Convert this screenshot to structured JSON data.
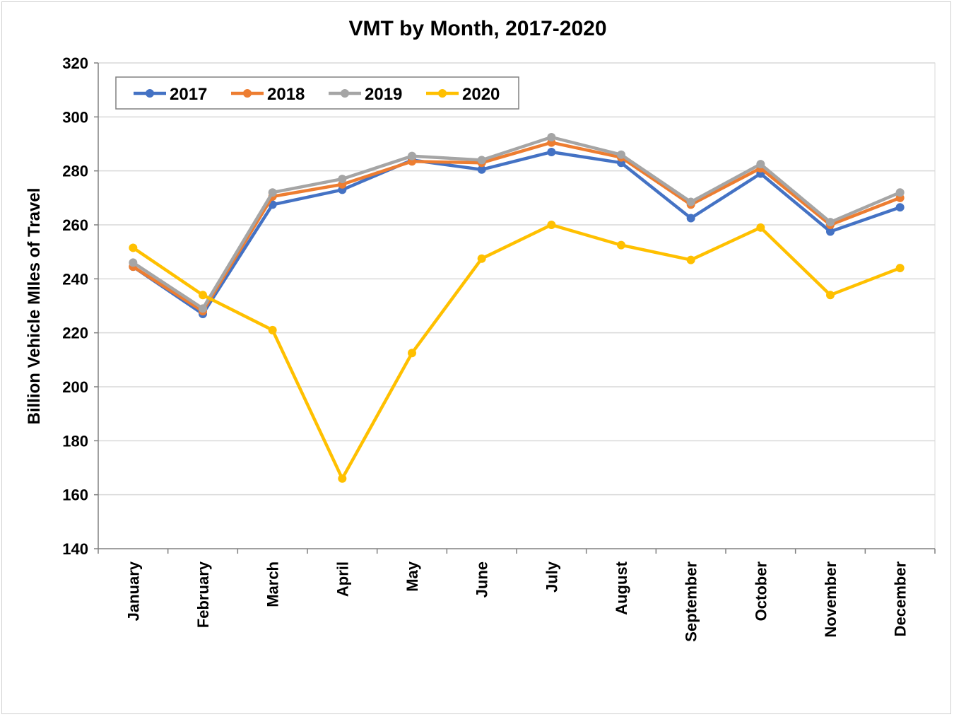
{
  "chart_data": {
    "type": "line",
    "title": "VMT by Month, 2017-2020",
    "xlabel": "",
    "ylabel": "Billion Vehicle MIles of Travel",
    "ylim": [
      140,
      320
    ],
    "yticks": [
      140,
      160,
      180,
      200,
      220,
      240,
      260,
      280,
      300,
      320
    ],
    "grid": true,
    "legend_position": "top-left",
    "categories": [
      "January",
      "February",
      "March",
      "April",
      "May",
      "June",
      "July",
      "August",
      "September",
      "October",
      "November",
      "December"
    ],
    "series": [
      {
        "name": "2017",
        "color": "#4472c4",
        "values": [
          244.5,
          227,
          267.5,
          273,
          284,
          280.5,
          287,
          283,
          262.5,
          279,
          257.5,
          266.5
        ]
      },
      {
        "name": "2018",
        "color": "#ed7d31",
        "values": [
          244.5,
          228,
          270.5,
          275,
          283.5,
          283,
          290.5,
          285,
          267.5,
          281,
          260,
          270
        ]
      },
      {
        "name": "2019",
        "color": "#a5a5a5",
        "values": [
          246,
          229,
          272,
          277,
          285.5,
          284,
          292.5,
          286,
          268.5,
          282.5,
          261,
          272
        ]
      },
      {
        "name": "2020",
        "color": "#ffc000",
        "values": [
          251.5,
          234,
          221,
          166,
          212.5,
          247.5,
          260,
          252.5,
          247,
          259,
          234,
          244
        ]
      }
    ]
  }
}
